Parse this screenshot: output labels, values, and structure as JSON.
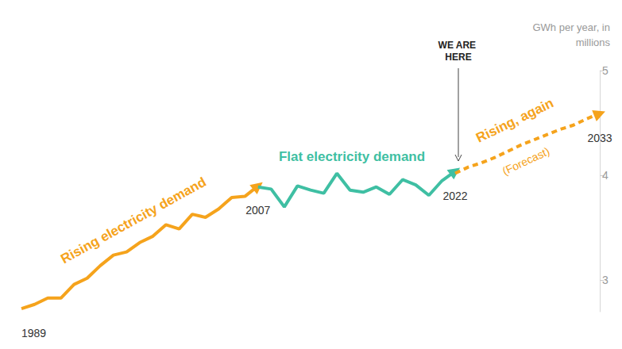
{
  "chart_data": {
    "type": "line",
    "y_label": "GWh per year, in millions",
    "x": [
      1989,
      1990,
      1991,
      1992,
      1993,
      1994,
      1995,
      1996,
      1997,
      1998,
      1999,
      2000,
      2001,
      2002,
      2003,
      2004,
      2005,
      2006,
      2007,
      2008,
      2009,
      2010,
      2011,
      2012,
      2013,
      2014,
      2015,
      2016,
      2017,
      2018,
      2019,
      2020,
      2021,
      2022,
      2023,
      2024,
      2025,
      2026,
      2027,
      2028,
      2029,
      2030,
      2031,
      2032,
      2033
    ],
    "series": [
      {
        "type": "line",
        "color": "#f5a31c",
        "line_style": "solid",
        "values": [
          2.73,
          2.77,
          2.83,
          2.83,
          2.96,
          3.02,
          3.14,
          3.24,
          3.27,
          3.36,
          3.42,
          3.53,
          3.49,
          3.63,
          3.6,
          3.68,
          3.79,
          3.8,
          3.9,
          null,
          null,
          null,
          null,
          null,
          null,
          null,
          null,
          null,
          null,
          null,
          null,
          null,
          null,
          null,
          null,
          null,
          null,
          null,
          null,
          null,
          null,
          null,
          null,
          null,
          null
        ]
      },
      {
        "type": "line",
        "color": "#3fbfa3",
        "line_style": "solid",
        "values": [
          null,
          null,
          null,
          null,
          null,
          null,
          null,
          null,
          null,
          null,
          null,
          null,
          null,
          null,
          null,
          null,
          null,
          null,
          3.89,
          3.87,
          3.7,
          3.9,
          3.86,
          3.83,
          4.02,
          3.86,
          3.84,
          3.89,
          3.82,
          3.96,
          3.91,
          3.81,
          3.95,
          4.04,
          null,
          null,
          null,
          null,
          null,
          null,
          null,
          null,
          null,
          null,
          null
        ]
      },
      {
        "type": "line",
        "color": "#f5a31c",
        "line_style": "dashed",
        "values": [
          null,
          null,
          null,
          null,
          null,
          null,
          null,
          null,
          null,
          null,
          null,
          null,
          null,
          null,
          null,
          null,
          null,
          null,
          null,
          null,
          null,
          null,
          null,
          null,
          null,
          null,
          null,
          null,
          null,
          null,
          null,
          null,
          null,
          4.02,
          4.08,
          4.12,
          4.17,
          4.23,
          4.29,
          4.34,
          4.39,
          4.44,
          4.48,
          4.54,
          4.59
        ]
      }
    ],
    "xlim": [
      1989,
      2033
    ],
    "xticks": [
      1989,
      2007,
      2022,
      2033
    ],
    "ylim": [
      2.7,
      5
    ],
    "yticks": [
      3,
      4,
      5
    ],
    "grid": false,
    "annotations": [
      {
        "text": "Rising electricity demand",
        "color": "#f5a31c"
      },
      {
        "text": "Flat electricity demand",
        "color": "#3fbfa3"
      },
      {
        "text": "Rising, again",
        "color": "#f5a31c"
      },
      {
        "text": "(Forecast)",
        "color": "#f5a31c"
      },
      {
        "text": "WE ARE HERE",
        "color": "#222222"
      }
    ]
  }
}
